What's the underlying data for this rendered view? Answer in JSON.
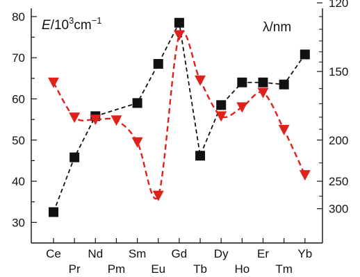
{
  "chart_data": {
    "type": "line",
    "title": "",
    "categories": [
      "Ce",
      "Pr",
      "Nd",
      "Pm",
      "Sm",
      "Eu",
      "Gd",
      "Tb",
      "Dy",
      "Ho",
      "Er",
      "Tm",
      "Yb"
    ],
    "ylabel_left_prefix": "E",
    "ylabel_left_unit": "/10",
    "ylabel_left_exp": "3",
    "ylabel_left_tail": "cm",
    "ylabel_left_tail_exp": "−1",
    "ylabel_right": "λ/nm",
    "ylim": [
      25,
      82
    ],
    "yticks_left": [
      30,
      40,
      50,
      60,
      70,
      80
    ],
    "yticks_right": [
      {
        "nm": 120,
        "label": "120"
      },
      {
        "nm": 150,
        "label": "150"
      },
      {
        "nm": 200,
        "label": "200"
      },
      {
        "nm": 250,
        "label": "250"
      },
      {
        "nm": 300,
        "label": "300"
      }
    ],
    "series": [
      {
        "marker": "square",
        "color": "#111111",
        "values": [
          32.5,
          45.8,
          55.8,
          null,
          59.0,
          68.5,
          78.5,
          46.2,
          58.5,
          64.0,
          64.0,
          63.5,
          70.8
        ]
      },
      {
        "marker": "triangle-down",
        "color": "#e0201b",
        "values": [
          64.0,
          55.5,
          55.0,
          54.8,
          49.5,
          36.5,
          75.5,
          64.5,
          55.8,
          58.0,
          61.5,
          52.5,
          41.5
        ]
      }
    ]
  }
}
